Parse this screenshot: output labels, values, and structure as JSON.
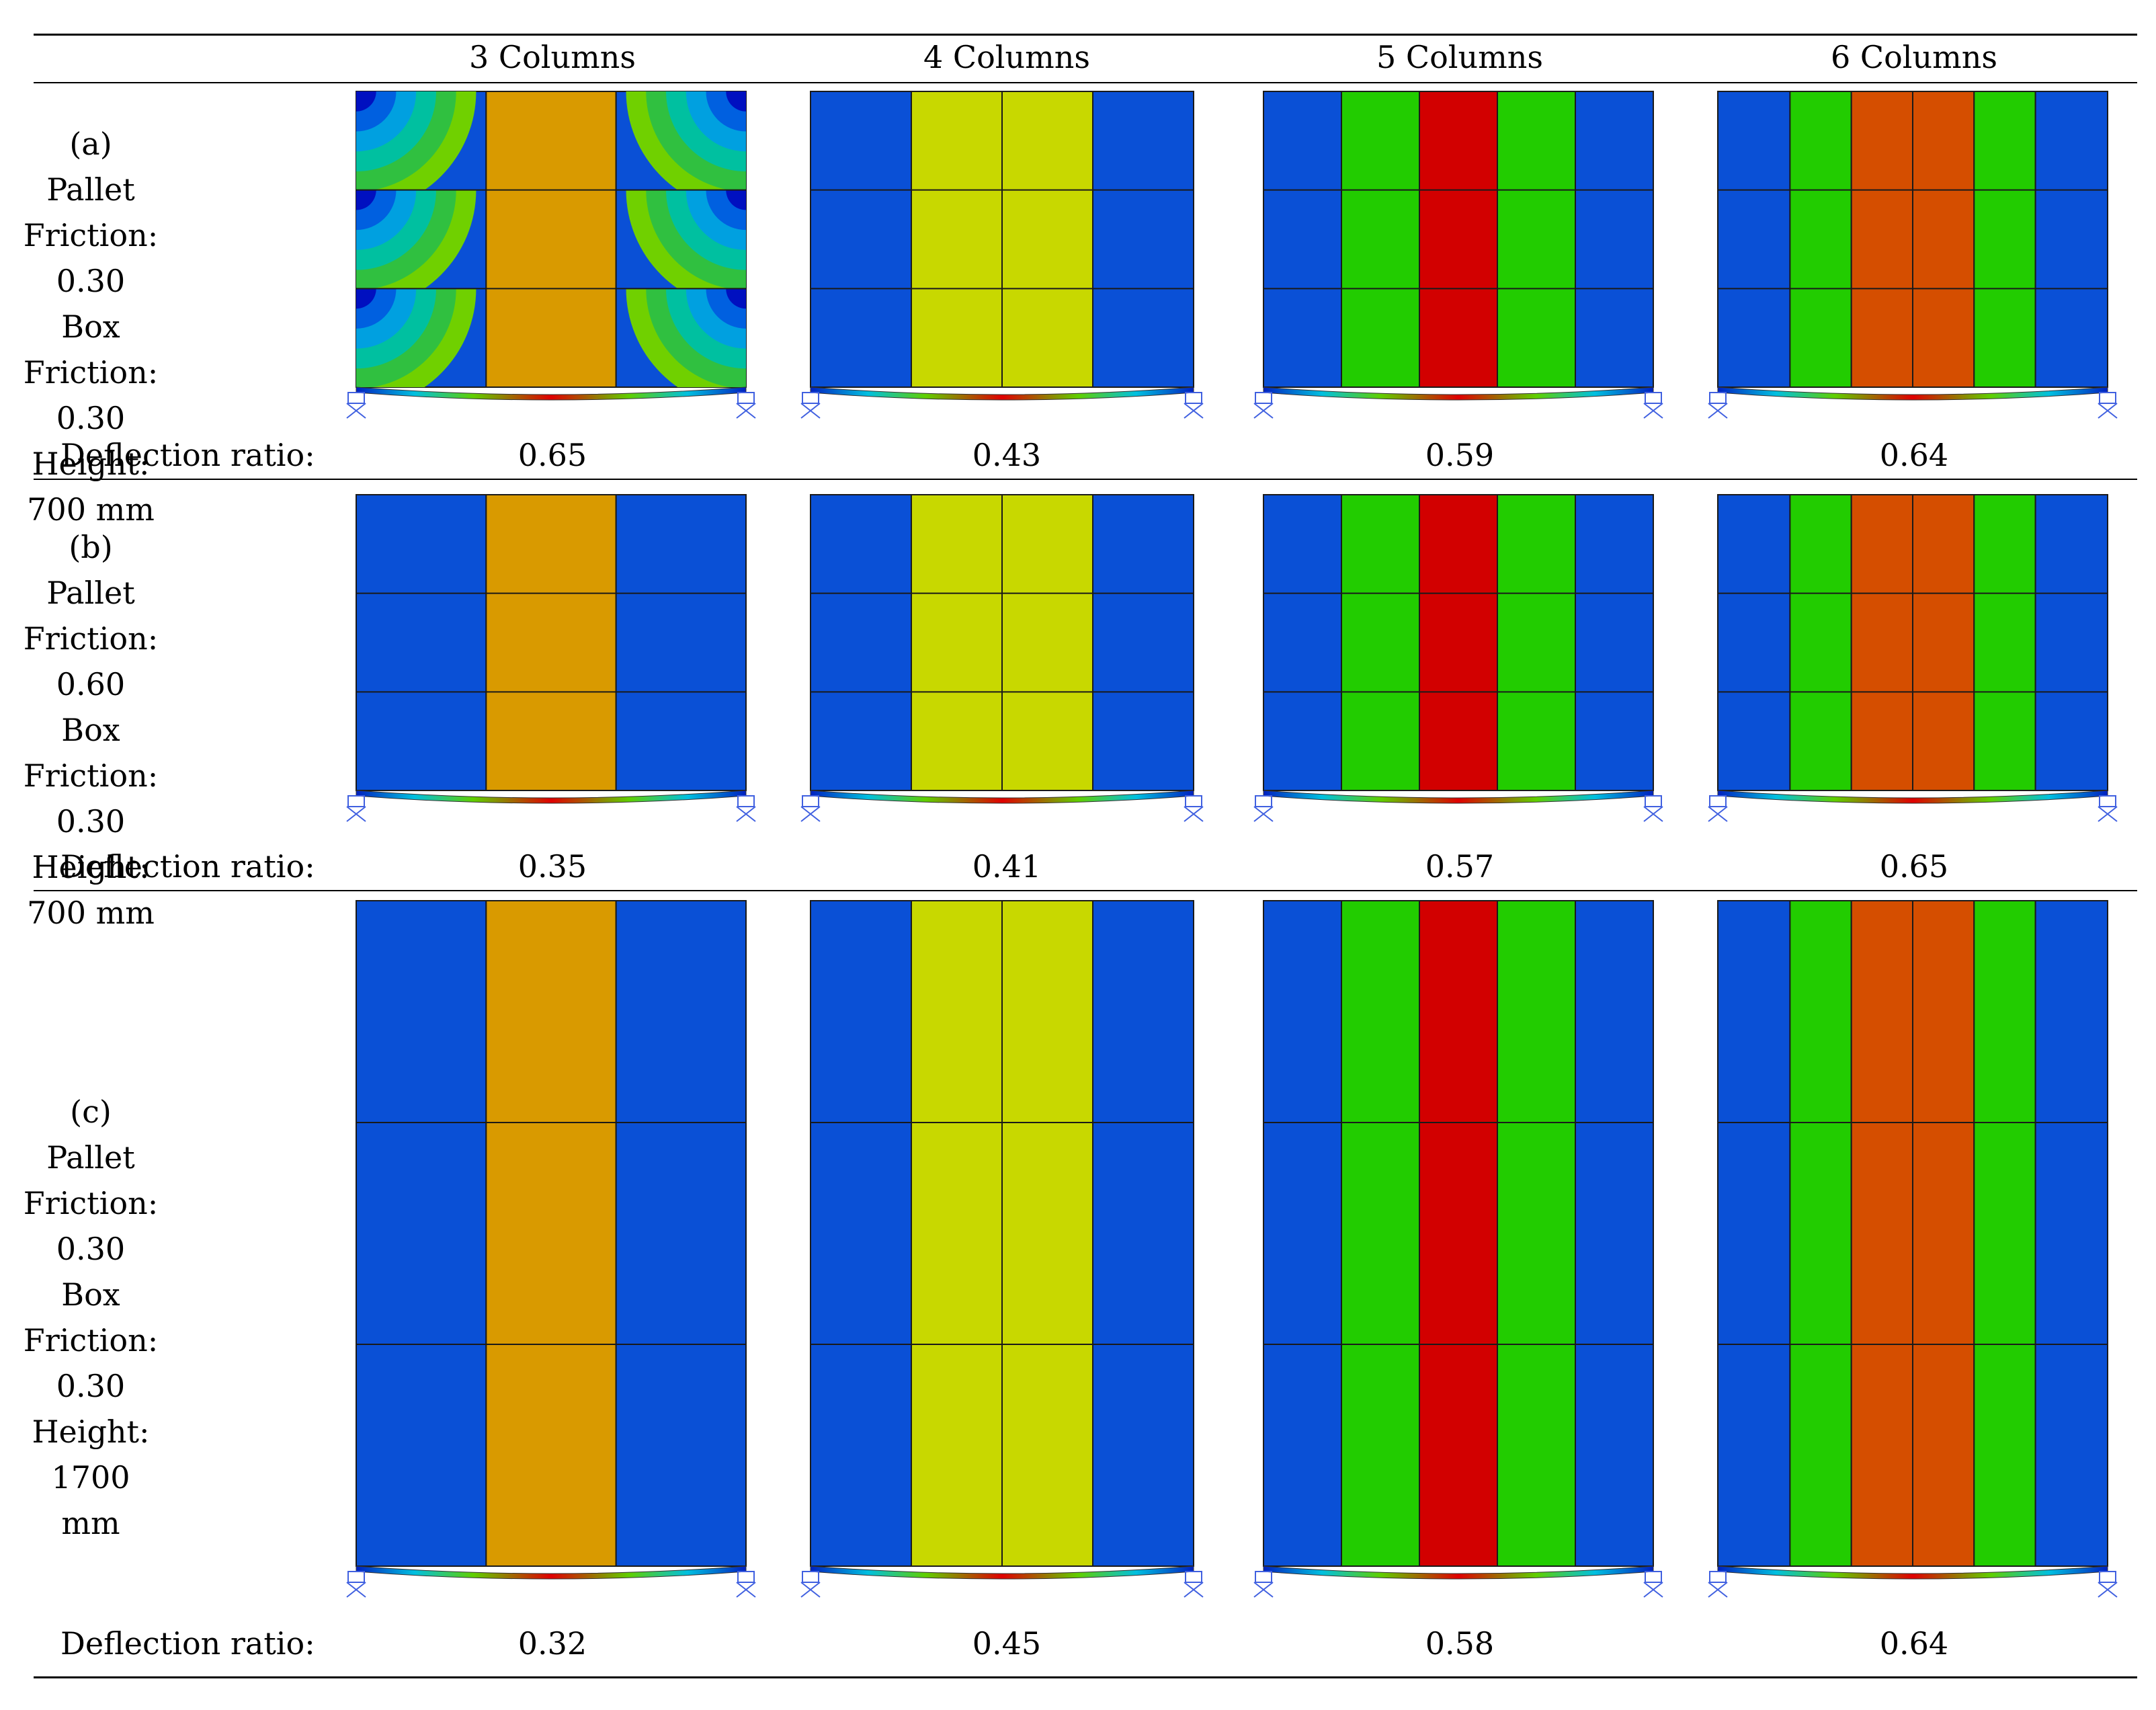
{
  "columns": [
    "3 Columns",
    "4 Columns",
    "5 Columns",
    "6 Columns"
  ],
  "rows": [
    {
      "id": "a",
      "lines": [
        "(a)",
        "Pallet Friction:",
        "0.30",
        "Box Friction:",
        "0.30",
        "Height: 700 mm"
      ],
      "deflection_label": "Deflection ratio:",
      "deflection_ratios": [
        "0.65",
        "0.43",
        "0.59",
        "0.64"
      ]
    },
    {
      "id": "b",
      "lines": [
        "(b)",
        "Pallet Friction:",
        "0.60",
        "Box Friction:",
        "0.30",
        "Height: 700 mm"
      ],
      "deflection_label": "Deflection ratio:",
      "deflection_ratios": [
        "0.35",
        "0.41",
        "0.57",
        "0.65"
      ]
    },
    {
      "id": "c",
      "lines": [
        "(c)",
        "Pallet Friction:",
        "0.30",
        "Box Friction:",
        "0.30",
        "Height: 1700",
        "mm"
      ],
      "deflection_label": "Deflection ratio:",
      "deflection_ratios": [
        "0.32",
        "0.45",
        "0.58",
        "0.64"
      ]
    }
  ],
  "colors": {
    "blue": "#0a50d6",
    "orange": "#d99a00",
    "yellow": "#c8d800",
    "green": "#22cc00",
    "red": "#d20000",
    "dark_orange": "#d54e00",
    "mint": "#00d870",
    "cyan": "#00a8e0"
  }
}
